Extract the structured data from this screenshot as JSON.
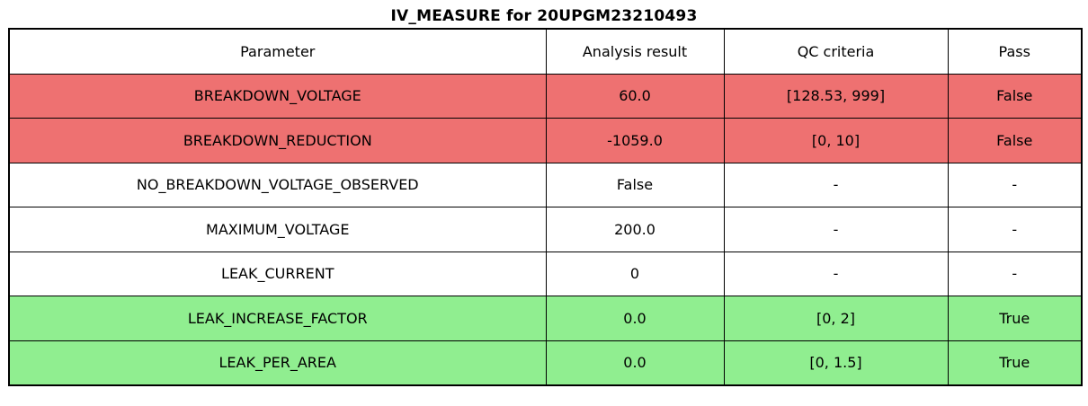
{
  "title": "IV_MEASURE for 20UPGM23210493",
  "chart_data": {
    "type": "table",
    "title": "IV_MEASURE for 20UPGM23210493",
    "columns": [
      "Parameter",
      "Analysis result",
      "QC criteria",
      "Pass"
    ],
    "rows": [
      {
        "parameter": "BREAKDOWN_VOLTAGE",
        "result": "60.0",
        "criteria": "[128.53, 999]",
        "pass": "False",
        "status": "fail"
      },
      {
        "parameter": "BREAKDOWN_REDUCTION",
        "result": "-1059.0",
        "criteria": "[0, 10]",
        "pass": "False",
        "status": "fail"
      },
      {
        "parameter": "NO_BREAKDOWN_VOLTAGE_OBSERVED",
        "result": "False",
        "criteria": "-",
        "pass": "-",
        "status": "none"
      },
      {
        "parameter": "MAXIMUM_VOLTAGE",
        "result": "200.0",
        "criteria": "-",
        "pass": "-",
        "status": "none"
      },
      {
        "parameter": "LEAK_CURRENT",
        "result": "0",
        "criteria": "-",
        "pass": "-",
        "status": "none"
      },
      {
        "parameter": "LEAK_INCREASE_FACTOR",
        "result": "0.0",
        "criteria": "[0, 2]",
        "pass": "True",
        "status": "pass"
      },
      {
        "parameter": "LEAK_PER_AREA",
        "result": "0.0",
        "criteria": "[0, 1.5]",
        "pass": "True",
        "status": "pass"
      }
    ],
    "colors": {
      "fail_row_bg": "#ee7171",
      "pass_row_bg": "#90ee90",
      "neutral_row_bg": "#ffffff",
      "border": "#000000",
      "text": "#000000"
    },
    "layout_hints": {
      "legend_position": "none",
      "grid": "full-cell-borders"
    }
  }
}
